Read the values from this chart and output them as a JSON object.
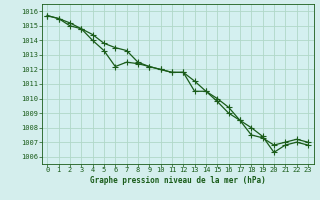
{
  "title": "Graphe pression niveau de la mer (hPa)",
  "bg_color": "#d4eeed",
  "plot_bg_color": "#d4f0f0",
  "grid_color": "#b0d8c8",
  "line_color": "#1a5c1a",
  "xlim": [
    -0.5,
    23.5
  ],
  "ylim": [
    1005.5,
    1016.5
  ],
  "yticks": [
    1006,
    1007,
    1008,
    1009,
    1010,
    1011,
    1012,
    1013,
    1014,
    1015,
    1016
  ],
  "xticks": [
    0,
    1,
    2,
    3,
    4,
    5,
    6,
    7,
    8,
    9,
    10,
    11,
    12,
    13,
    14,
    15,
    16,
    17,
    18,
    19,
    20,
    21,
    22,
    23
  ],
  "series1_x": [
    0,
    1,
    2,
    3,
    4,
    5,
    6,
    7,
    8,
    9,
    10,
    11,
    12,
    13,
    14,
    15,
    16,
    17,
    18,
    19,
    20,
    21,
    22,
    23
  ],
  "series1_y": [
    1015.7,
    1015.5,
    1015.0,
    1014.8,
    1014.0,
    1013.3,
    1012.2,
    1012.5,
    1012.4,
    1012.2,
    1012.0,
    1011.8,
    1011.8,
    1011.2,
    1010.5,
    1010.0,
    1009.4,
    1008.5,
    1008.0,
    1007.4,
    1006.3,
    1006.8,
    1007.0,
    1006.8
  ],
  "series2_x": [
    0,
    1,
    2,
    3,
    4,
    5,
    6,
    7,
    8,
    9,
    10,
    11,
    12,
    13,
    14,
    15,
    16,
    17,
    18,
    19,
    20,
    21,
    22,
    23
  ],
  "series2_y": [
    1015.7,
    1015.5,
    1015.2,
    1014.8,
    1014.4,
    1013.8,
    1013.5,
    1013.3,
    1012.5,
    1012.2,
    1012.0,
    1011.8,
    1011.8,
    1010.5,
    1010.5,
    1009.8,
    1009.0,
    1008.5,
    1007.5,
    1007.3,
    1006.8,
    1007.0,
    1007.2,
    1007.0
  ],
  "ylabel_fontsize": 5.5,
  "tick_fontsize": 5.0,
  "line_width": 0.9,
  "marker_size": 2.2
}
